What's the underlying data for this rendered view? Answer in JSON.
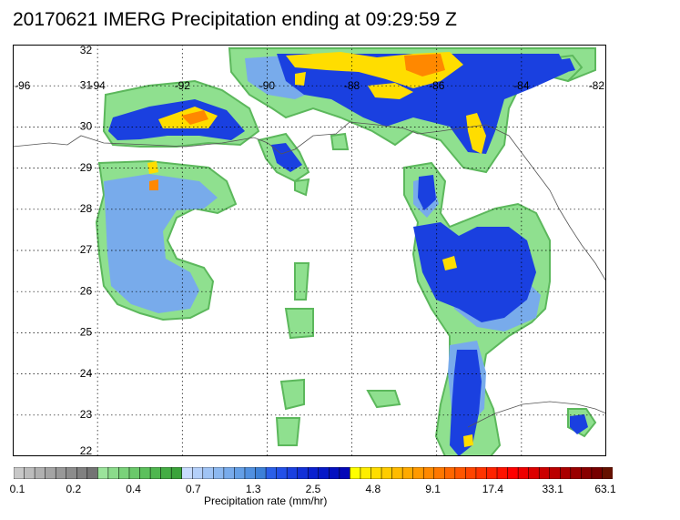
{
  "title": "20170621 IMERG Precipitation ending at 09:29:59 Z",
  "map": {
    "lon_range": [
      -96,
      -82
    ],
    "lat_range": [
      22,
      32
    ],
    "lon_labels": [
      "-96",
      "-94",
      "-92",
      "-90",
      "-88",
      "-86",
      "-84",
      "-82"
    ],
    "lat_labels": [
      "32",
      "31",
      "30",
      "29",
      "28",
      "27",
      "26",
      "25",
      "24",
      "23",
      "22"
    ],
    "grid": "dotted"
  },
  "colorbar": {
    "units": "Precipitation rate (mm/hr)",
    "tick_labels": [
      "0.1",
      "0.2",
      "0.4",
      "0.7",
      "1.3",
      "2.5",
      "4.8",
      "9.1",
      "17.4",
      "33.1",
      "63.1"
    ],
    "colors": [
      "#c8c8c8",
      "#bcbcbc",
      "#b0b0b0",
      "#a4a4a4",
      "#989898",
      "#8c8c8c",
      "#808080",
      "#747474",
      "#9be39b",
      "#8bdb8b",
      "#7ad27a",
      "#6ac96a",
      "#5cc05c",
      "#4fb64f",
      "#44ad44",
      "#3aa33a",
      "#c8dcff",
      "#b4d0fa",
      "#a0c4f5",
      "#8cb8f0",
      "#78abeb",
      "#649fe6",
      "#5090e0",
      "#3c80d8",
      "#2a5fe8",
      "#2250e8",
      "#1a40e0",
      "#1230d8",
      "#0a20d0",
      "#0618c8",
      "#0410c0",
      "#0408b8",
      "#ffff00",
      "#ffee00",
      "#ffdd00",
      "#ffcc00",
      "#ffbb00",
      "#ffaa00",
      "#ff9900",
      "#ff8800",
      "#ff7700",
      "#ff6600",
      "#ff5500",
      "#ff4400",
      "#ff3300",
      "#ff2200",
      "#ff1100",
      "#ff0000",
      "#ee0000",
      "#dd0000",
      "#cc0000",
      "#bb0000",
      "#aa0000",
      "#990000",
      "#880000",
      "#770000",
      "#661100"
    ]
  }
}
